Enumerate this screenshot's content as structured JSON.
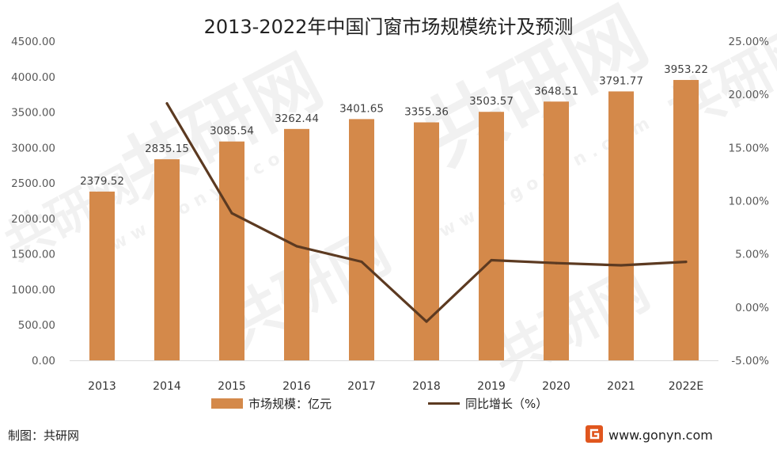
{
  "chart_data": {
    "type": "bar",
    "title": "2013-2022年中国门窗市场规模统计及预测",
    "categories": [
      "2013",
      "2014",
      "2015",
      "2016",
      "2017",
      "2018",
      "2019",
      "2020",
      "2021",
      "2022E"
    ],
    "series": [
      {
        "name": "市场规模：亿元",
        "type": "bar",
        "axis": "left",
        "color": "#D4894A",
        "values": [
          2379.52,
          2835.15,
          3085.54,
          3262.44,
          3401.65,
          3355.36,
          3503.57,
          3648.51,
          3791.77,
          3953.22
        ],
        "labels": [
          "2379.52",
          "2835.15",
          "3085.54",
          "3262.44",
          "3401.65",
          "3355.36",
          "3503.57",
          "3648.51",
          "3791.77",
          "3953.22"
        ]
      },
      {
        "name": "同比增长（%）",
        "type": "line",
        "axis": "right",
        "color": "#5C3A21",
        "values": [
          null,
          19.15,
          8.83,
          5.73,
          4.27,
          -1.36,
          4.42,
          4.14,
          3.93,
          4.26
        ]
      }
    ],
    "y_left": {
      "ylim": [
        0,
        4500
      ],
      "ticks": [
        "4500.00",
        "4000.00",
        "3500.00",
        "3000.00",
        "2500.00",
        "2000.00",
        "1500.00",
        "1000.00",
        "500.00",
        "0.00"
      ]
    },
    "y_right": {
      "ylim": [
        -5,
        25
      ],
      "ticks": [
        "25.00%",
        "20.00%",
        "15.00%",
        "10.00%",
        "5.00%",
        "0.00%",
        "-5.00%"
      ]
    },
    "grid": false,
    "legend_position": "bottom"
  },
  "footer": {
    "source": "制图：共研网",
    "website": "www.gonyn.com"
  },
  "watermark": {
    "brand": "共研网",
    "url": "w w w . g o n y n . c o m"
  }
}
